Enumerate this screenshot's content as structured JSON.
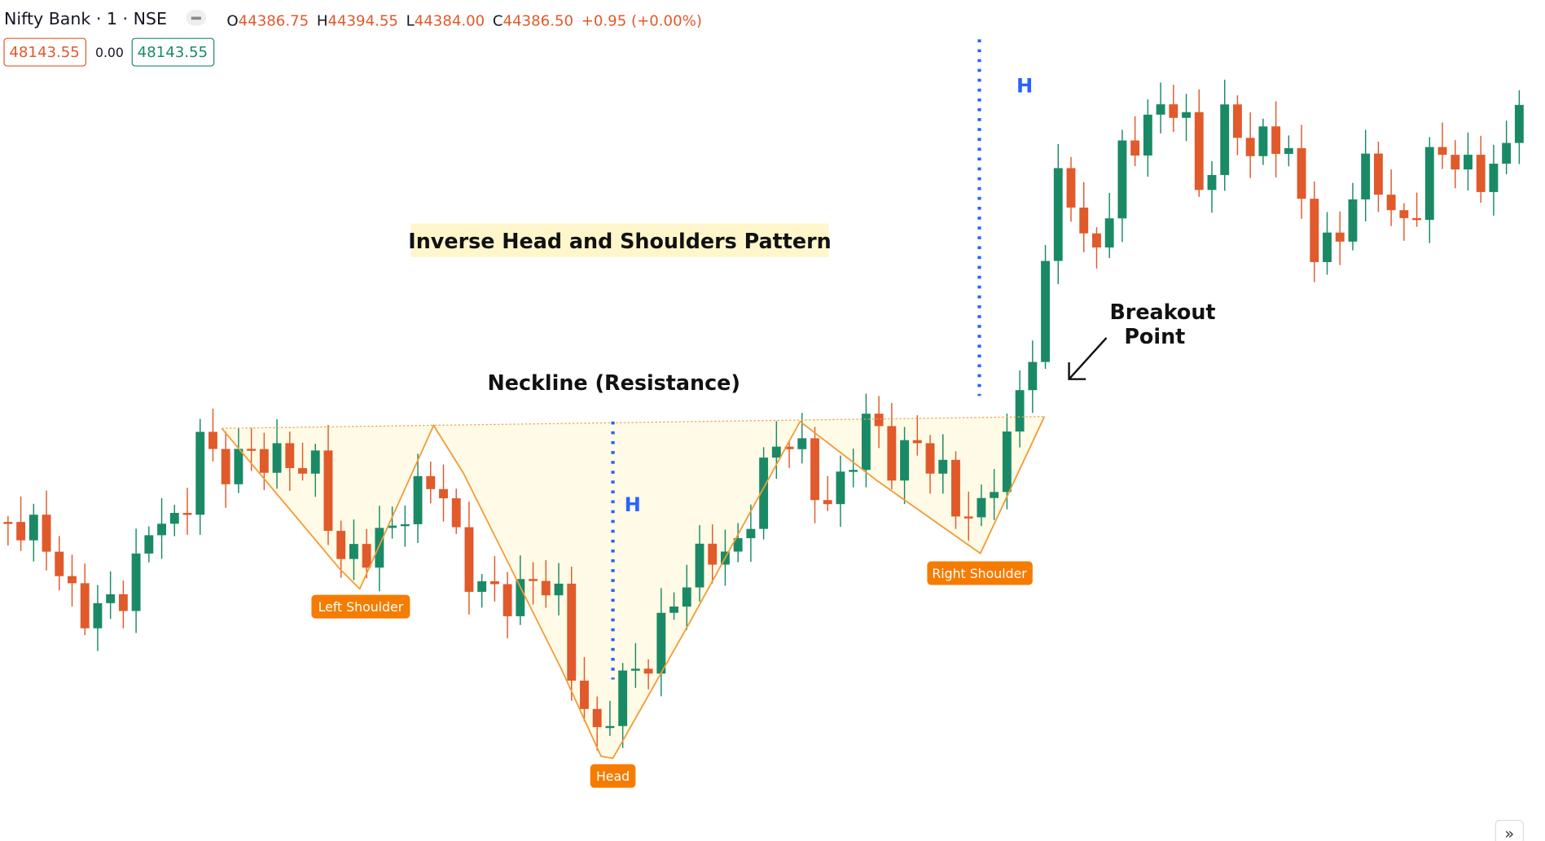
{
  "header": {
    "symbol": "Nifty Bank · 1 · NSE",
    "ohlc": [
      {
        "key": "O",
        "value": "44386.75"
      },
      {
        "key": "H",
        "value": "44394.55"
      },
      {
        "key": "L",
        "value": "44384.00"
      },
      {
        "key": "C",
        "value": "44386.50"
      }
    ],
    "change": "+0.95 (+0.00%)"
  },
  "price_boxes": {
    "bid": "48143.55",
    "spread": "0.00",
    "ask": "48143.55"
  },
  "annotations": {
    "title": "Inverse Head and Shoulders Pattern",
    "neckline": "Neckline (Resistance)",
    "breakout": [
      "Breakout",
      "Point"
    ],
    "height_marks": [
      "H",
      "H"
    ],
    "labels": {
      "left": "Left Shoulder",
      "head": "Head",
      "right": "Right Shoulder"
    }
  }
}
